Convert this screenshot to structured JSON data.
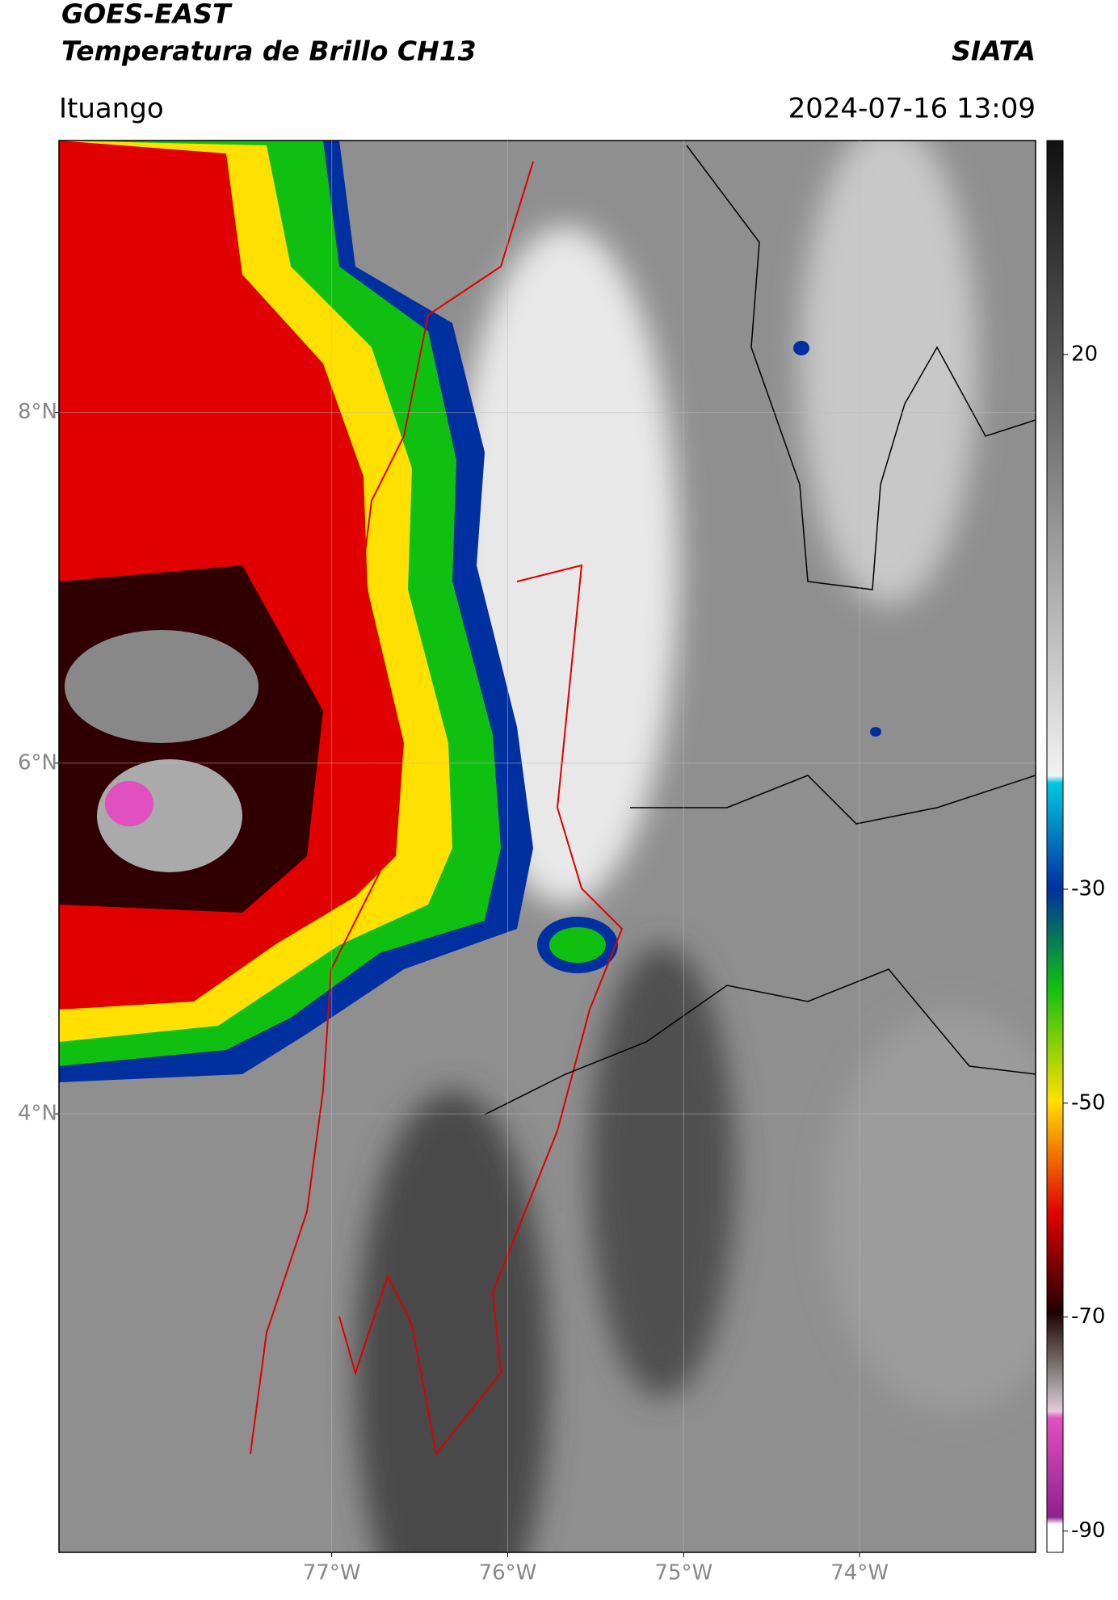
{
  "header": {
    "title_line1": "GOES-EAST",
    "title_line2": "Temperatura de Brillo CH13",
    "source": "SIATA",
    "location": "Ituango",
    "datetime": "2024-07-16 13:09"
  },
  "map": {
    "type": "map",
    "xlim": [
      -78.55,
      -73
    ],
    "ylim": [
      1.5,
      9.55
    ],
    "xticks": [
      {
        "value": -77,
        "label": "77°W"
      },
      {
        "value": -76,
        "label": "76°W"
      },
      {
        "value": -75,
        "label": "75°W"
      },
      {
        "value": -74,
        "label": "74°W"
      }
    ],
    "yticks": [
      {
        "value": 8,
        "label": "8°N"
      },
      {
        "value": 6,
        "label": "6°N"
      },
      {
        "value": 4,
        "label": "4°N"
      }
    ],
    "grid": true
  },
  "colorbar": {
    "lim": [
      -92,
      40
    ],
    "ticks": [
      20,
      -30,
      -50,
      -70,
      -90
    ]
  }
}
